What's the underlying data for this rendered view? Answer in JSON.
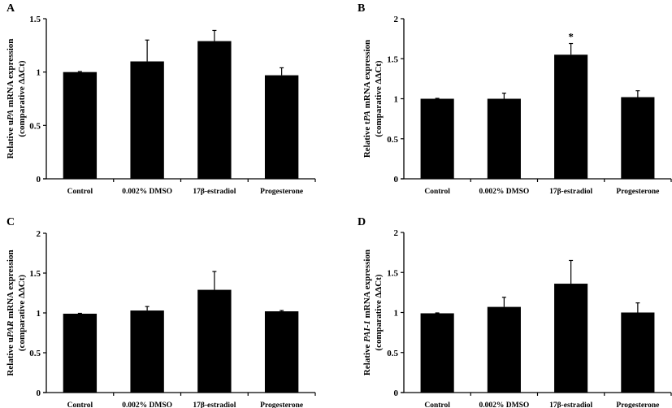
{
  "chart_data": [
    {
      "panel": "A",
      "type": "bar",
      "categories": [
        "Control",
        "0.002% DMSO",
        "17β-estradiol",
        "Progesterone"
      ],
      "values": [
        1.0,
        1.1,
        1.29,
        0.97
      ],
      "error_upper": [
        0.005,
        0.2,
        0.1,
        0.07
      ],
      "significance": [
        "",
        "",
        "",
        ""
      ],
      "ylabel_line1_prefix": "Relative u",
      "ylabel_line1_italic": "PA",
      "ylabel_line1_suffix": " mRNA expression",
      "ylabel_line2": "(comparative ΔΔCt)",
      "ylim": [
        0,
        1.5
      ],
      "yticks": [
        0,
        0.5,
        1,
        1.5
      ],
      "ytick_labels": [
        "0",
        "0.5",
        "1",
        "1.5"
      ],
      "grid": false,
      "bar_color": "#000000"
    },
    {
      "panel": "B",
      "type": "bar",
      "categories": [
        "Control",
        "0.002% DMSO",
        "17β-estradiol",
        "Progesterone"
      ],
      "values": [
        1.0,
        1.0,
        1.55,
        1.02
      ],
      "error_upper": [
        0.005,
        0.07,
        0.14,
        0.08
      ],
      "significance": [
        "",
        "",
        "*",
        ""
      ],
      "ylabel_line1_prefix": "Relative t",
      "ylabel_line1_italic": "PA",
      "ylabel_line1_suffix": " mRNA expression",
      "ylabel_line2": "(comparative ΔΔCt)",
      "ylim": [
        0,
        2
      ],
      "yticks": [
        0,
        0.5,
        1,
        1.5,
        2
      ],
      "ytick_labels": [
        "0",
        "0.5",
        "1",
        "1.5",
        "2"
      ],
      "grid": false,
      "bar_color": "#000000"
    },
    {
      "panel": "C",
      "type": "bar",
      "categories": [
        "Control",
        "0.002% DMSO",
        "17β-estradiol",
        "Progesterone"
      ],
      "values": [
        0.99,
        1.03,
        1.29,
        1.02
      ],
      "error_upper": [
        0.005,
        0.05,
        0.23,
        0.01
      ],
      "significance": [
        "",
        "",
        "",
        ""
      ],
      "ylabel_line1_prefix": "Relative u",
      "ylabel_line1_italic": "PAR",
      "ylabel_line1_suffix": " mRNA expression",
      "ylabel_line2": "(comparative ΔΔCt)",
      "ylim": [
        0,
        2
      ],
      "yticks": [
        0,
        0.5,
        1,
        1.5,
        2
      ],
      "ytick_labels": [
        "0",
        "0.5",
        "1",
        "1.5",
        "2"
      ],
      "grid": false,
      "bar_color": "#000000"
    },
    {
      "panel": "D",
      "type": "bar",
      "categories": [
        "Control",
        "0.002% DMSO",
        "17β-estradiol",
        "Progesterone"
      ],
      "values": [
        0.99,
        1.07,
        1.36,
        1.0
      ],
      "error_upper": [
        0.005,
        0.12,
        0.29,
        0.12
      ],
      "significance": [
        "",
        "",
        "",
        ""
      ],
      "ylabel_line1_prefix": "Relative ",
      "ylabel_line1_italic": "PAI-1",
      "ylabel_line1_suffix": " mRNA expression",
      "ylabel_line2": "(comparative ΔΔCt)",
      "ylim": [
        0,
        2
      ],
      "yticks": [
        0,
        0.5,
        1,
        1.5,
        2
      ],
      "ytick_labels": [
        "0",
        "0.5",
        "1",
        "1.5",
        "2"
      ],
      "grid": false,
      "bar_color": "#000000"
    }
  ]
}
